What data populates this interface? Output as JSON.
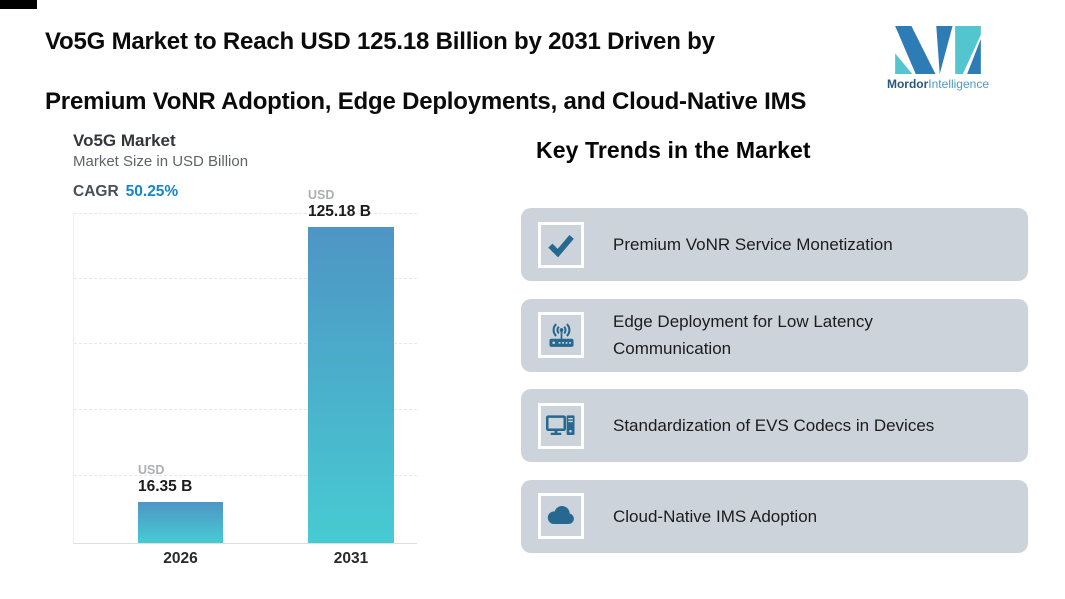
{
  "header": {
    "title_line1": "Vo5G Market to Reach USD 125.18 Billion by 2031 Driven by",
    "title_line2": "Premium VoNR Adoption, Edge Deployments, and Cloud-Native IMS",
    "logo": {
      "brand_bold": "Mordor",
      "brand_light": "Intelligence",
      "blue": "#2e7cb5",
      "teal": "#52c5cf"
    }
  },
  "chart_data": {
    "type": "bar",
    "title": "Vo5G Market",
    "subtitle": "Market Size in USD Billion",
    "cagr_label": "CAGR",
    "cagr_value": "50.25%",
    "categories": [
      "2026",
      "2031"
    ],
    "values": [
      16.35,
      125.18
    ],
    "bar_labels": [
      {
        "currency": "USD",
        "value": "16.35 B"
      },
      {
        "currency": "USD",
        "value": "125.18 B"
      }
    ],
    "ylabel": "Market Size in USD Billion",
    "ylim": [
      0,
      130
    ],
    "grid": "horizontal-dashed",
    "legend": "none",
    "bar_gradient_top": "#4e95c5",
    "bar_gradient_bottom": "#47cbd2",
    "cagr_value_color": "#1486cd"
  },
  "trends": {
    "heading": "Key Trends in the Market",
    "card_bg": "#ccd3da",
    "icon_color": "#26688f",
    "cards": [
      {
        "icon": "check-icon",
        "label": "Premium VoNR Service Monetization"
      },
      {
        "icon": "wireless-router-icon",
        "label": "Edge Deployment for Low Latency Communication"
      },
      {
        "icon": "desktop-computer-icon",
        "label": "Standardization of EVS Codecs in Devices"
      },
      {
        "icon": "cloud-icon",
        "label": "Cloud-Native IMS Adoption"
      }
    ]
  }
}
